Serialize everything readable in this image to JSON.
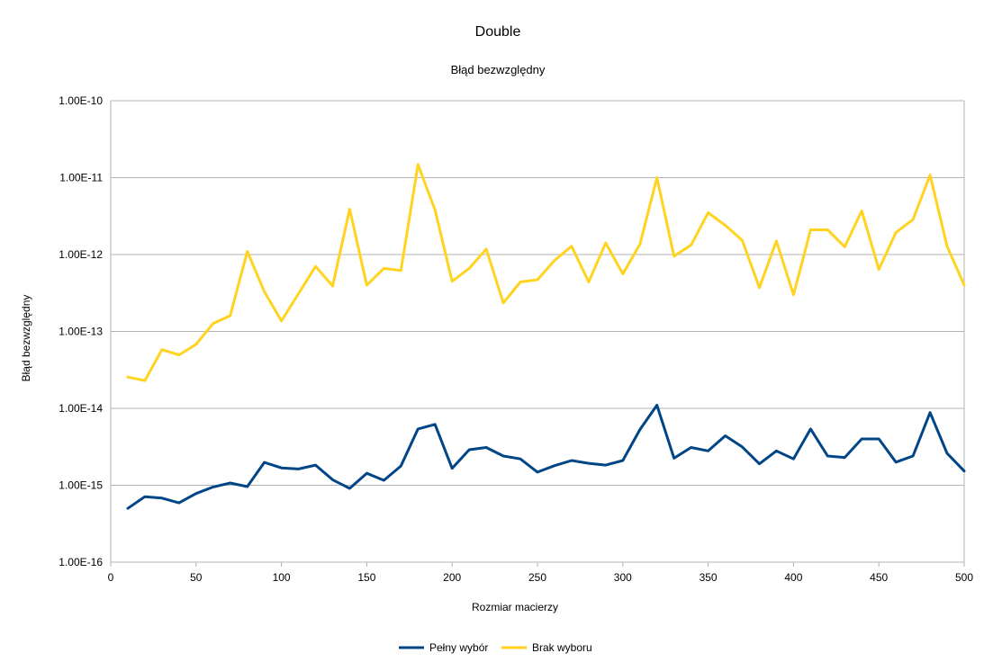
{
  "chart_data": {
    "type": "line",
    "title": "Double",
    "subtitle": "Błąd bezwzględny",
    "xlabel": "Rozmiar macierzy",
    "ylabel": "Błąd bezwzględny",
    "yscale": "log",
    "xlim": [
      0,
      500
    ],
    "ylim": [
      1e-16,
      1e-10
    ],
    "x_ticks": [
      "0",
      "50",
      "100",
      "150",
      "200",
      "250",
      "300",
      "350",
      "400",
      "450",
      "500"
    ],
    "y_ticks": [
      "1.00E-16",
      "1.00E-15",
      "1.00E-14",
      "1.00E-13",
      "1.00E-12",
      "1.00E-11",
      "1.00E-10"
    ],
    "grid": "horizontal",
    "legend_position": "bottom",
    "x": [
      10,
      20,
      30,
      40,
      50,
      60,
      70,
      80,
      90,
      100,
      110,
      120,
      130,
      140,
      150,
      160,
      170,
      180,
      190,
      200,
      210,
      220,
      230,
      240,
      250,
      260,
      270,
      280,
      290,
      300,
      310,
      320,
      330,
      340,
      350,
      360,
      370,
      380,
      390,
      400,
      410,
      420,
      430,
      440,
      450,
      460,
      470,
      480,
      490,
      500
    ],
    "series": [
      {
        "name": "Pełny wybór",
        "color": "#004586",
        "values": [
          5e-16,
          7.1e-16,
          6.8e-16,
          5.9e-16,
          7.8e-16,
          9.5e-16,
          1.07e-15,
          9.6e-16,
          1.98e-15,
          1.68e-15,
          1.63e-15,
          1.83e-15,
          1.18e-15,
          9.1e-16,
          1.43e-15,
          1.16e-15,
          1.78e-15,
          5.4e-15,
          6.2e-15,
          1.66e-15,
          2.9e-15,
          3.1e-15,
          2.4e-15,
          2.2e-15,
          1.48e-15,
          1.8e-15,
          2.1e-15,
          1.93e-15,
          1.83e-15,
          2.1e-15,
          5.3e-15,
          1.1e-14,
          2.25e-15,
          3.1e-15,
          2.8e-15,
          4.4e-15,
          3.15e-15,
          1.9e-15,
          2.8e-15,
          2.2e-15,
          5.4e-15,
          2.4e-15,
          2.3e-15,
          4e-15,
          4e-15,
          2e-15,
          2.4e-15,
          8.8e-15,
          2.6e-15,
          1.53e-15
        ]
      },
      {
        "name": "Brak wyboru",
        "color": "#ffd320",
        "values": [
          2.55e-14,
          2.3e-14,
          5.8e-14,
          4.95e-14,
          6.8e-14,
          1.27e-13,
          1.6e-13,
          1.1e-12,
          3.3e-13,
          1.37e-13,
          3.1e-13,
          7e-13,
          3.9e-13,
          3.9e-12,
          4e-13,
          6.6e-13,
          6.2e-13,
          1.48e-11,
          3.8e-12,
          4.5e-13,
          6.6e-13,
          1.18e-12,
          2.35e-13,
          4.4e-13,
          4.7e-13,
          8.4e-13,
          1.28e-12,
          4.4e-13,
          1.42e-12,
          5.6e-13,
          1.36e-12,
          1e-11,
          9.5e-13,
          1.33e-12,
          3.5e-12,
          2.4e-12,
          1.53e-12,
          3.7e-13,
          1.5e-12,
          3e-13,
          2.1e-12,
          2.1e-12,
          1.26e-12,
          3.7e-12,
          6.4e-13,
          1.94e-12,
          2.85e-12,
          1.08e-11,
          1.28e-12,
          4e-13
        ]
      }
    ]
  }
}
